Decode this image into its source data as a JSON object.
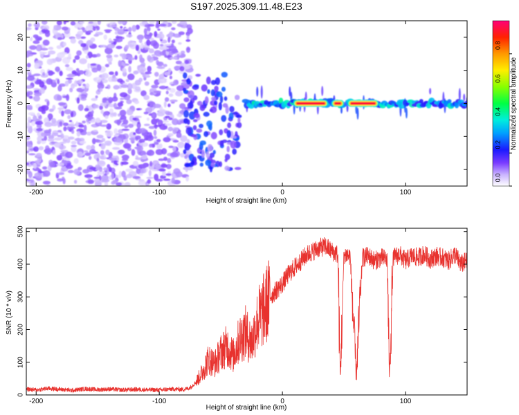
{
  "title": "S197.2025.309.11.48.E23",
  "chart_data": [
    {
      "type": "heatmap",
      "name": "spectrogram",
      "xlabel": "Height of straight line (km)",
      "ylabel": "Frequency (Hz)",
      "xlim": [
        -208,
        150
      ],
      "ylim": [
        -25,
        25
      ],
      "xticks": [
        -200,
        -100,
        0,
        100
      ],
      "xtick_labels": [
        "-200",
        "-100",
        "0",
        "100"
      ],
      "yticks": [
        20,
        10,
        0,
        -10,
        -20
      ],
      "ytick_labels": [
        "20",
        "10",
        "0",
        "-10",
        "-20"
      ],
      "colorbar": {
        "label": "Normalized spectral amplitude",
        "range": [
          0.0,
          1.0
        ],
        "ticks": [
          0.0,
          0.2,
          0.4,
          0.6,
          0.8
        ],
        "tick_labels": [
          "0.0",
          "0.2",
          "0.4",
          "0.6",
          "0.8"
        ]
      },
      "features": [
        {
          "kind": "noise_field",
          "x_range": [
            -208,
            -75
          ],
          "f_range": [
            -25,
            25
          ],
          "amplitude": 0.1
        },
        {
          "kind": "scattered_blobs",
          "x_range": [
            -80,
            -35
          ],
          "f_range": [
            -20,
            12
          ],
          "amplitude": 0.2
        },
        {
          "kind": "carrier_band",
          "x_range": [
            -30,
            150
          ],
          "f": 0,
          "amplitude": 0.3
        },
        {
          "kind": "peak_segment",
          "x_range": [
            10,
            36
          ],
          "f": 0,
          "amplitude": 0.95
        },
        {
          "kind": "peak_segment",
          "x_range": [
            41,
            49
          ],
          "f": 0,
          "amplitude": 0.95
        },
        {
          "kind": "peak_segment",
          "x_range": [
            54,
            77
          ],
          "f": 0,
          "amplitude": 0.95
        }
      ]
    },
    {
      "type": "line",
      "name": "snr",
      "xlabel": "Height of straight line (km)",
      "ylabel": "SNR (10 * v/v)",
      "xlim": [
        -208,
        150
      ],
      "ylim": [
        0,
        510
      ],
      "xticks": [
        -200,
        -100,
        0,
        100
      ],
      "xtick_labels": [
        "-200",
        "-100",
        "0",
        "100"
      ],
      "yticks": [
        0,
        100,
        200,
        300,
        400,
        500
      ],
      "ytick_labels": [
        "0",
        "100",
        "200",
        "300",
        "400",
        "500"
      ],
      "color": "#e8322e",
      "x": [
        -208,
        -200,
        -190,
        -180,
        -170,
        -160,
        -150,
        -140,
        -130,
        -120,
        -110,
        -100,
        -90,
        -80,
        -75,
        -70,
        -65,
        -60,
        -55,
        -50,
        -45,
        -40,
        -35,
        -30,
        -25,
        -20,
        -15,
        -10,
        -5,
        0,
        5,
        10,
        15,
        20,
        25,
        30,
        35,
        40,
        45,
        47,
        50,
        55,
        60,
        65,
        70,
        75,
        80,
        85,
        87,
        90,
        95,
        100,
        105,
        110,
        115,
        120,
        125,
        130,
        135,
        140,
        145,
        150
      ],
      "values": [
        18,
        15,
        20,
        17,
        14,
        19,
        16,
        18,
        15,
        17,
        16,
        15,
        18,
        17,
        22,
        40,
        70,
        110,
        95,
        130,
        150,
        120,
        170,
        190,
        160,
        230,
        260,
        300,
        320,
        340,
        370,
        390,
        410,
        430,
        440,
        450,
        455,
        440,
        430,
        50,
        430,
        425,
        60,
        420,
        425,
        410,
        420,
        415,
        60,
        420,
        430,
        410,
        425,
        420,
        430,
        415,
        425,
        420,
        410,
        430,
        400,
        410
      ]
    }
  ]
}
